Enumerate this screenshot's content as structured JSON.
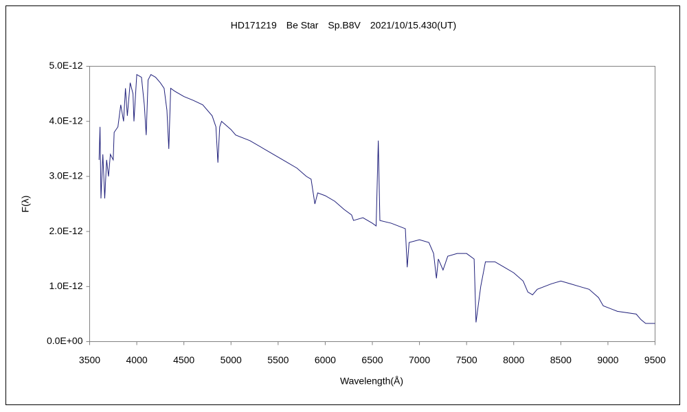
{
  "chart_data": {
    "type": "line",
    "title": "HD171219　Be Star　Sp.B8V　2021/10/15.430(UT)",
    "xlabel": "Wavelength(Å)",
    "ylabel": "F(λ)",
    "xlim": [
      3500,
      9500
    ],
    "xticks": [
      3500,
      4000,
      4500,
      5000,
      5500,
      6000,
      6500,
      7000,
      7500,
      8000,
      8500,
      9000,
      9500
    ],
    "ylim": [
      0,
      5e-12
    ],
    "yticks": [
      {
        "value": 0,
        "label": "0.0E+00"
      },
      {
        "value": 1e-12,
        "label": "1.0E-12"
      },
      {
        "value": 2e-12,
        "label": "2.0E-12"
      },
      {
        "value": 3e-12,
        "label": "3.0E-12"
      },
      {
        "value": 4e-12,
        "label": "4.0E-12"
      },
      {
        "value": 5e-12,
        "label": "5.0E-12"
      }
    ],
    "grid": false,
    "series": [
      {
        "color": "#1f1f7a",
        "x": [
          3600,
          3610,
          3620,
          3640,
          3660,
          3680,
          3700,
          3720,
          3750,
          3760,
          3800,
          3830,
          3860,
          3880,
          3900,
          3930,
          3960,
          3970,
          4000,
          4050,
          4080,
          4100,
          4120,
          4150,
          4200,
          4250,
          4290,
          4320,
          4340,
          4360,
          4400,
          4500,
          4600,
          4700,
          4800,
          4840,
          4861,
          4880,
          4900,
          5000,
          5050,
          5200,
          5400,
          5500,
          5600,
          5700,
          5800,
          5850,
          5890,
          5920,
          6000,
          6100,
          6200,
          6280,
          6300,
          6400,
          6500,
          6540,
          6563,
          6580,
          6700,
          6850,
          6870,
          6890,
          7000,
          7100,
          7150,
          7180,
          7200,
          7250,
          7300,
          7400,
          7500,
          7580,
          7600,
          7650,
          7700,
          7800,
          7900,
          8000,
          8100,
          8150,
          8200,
          8250,
          8400,
          8500,
          8600,
          8700,
          8800,
          8900,
          8950,
          9100,
          9300,
          9350,
          9400,
          9500
        ],
        "values": [
          3.3e-12,
          3.9e-12,
          2.6e-12,
          3.4e-12,
          2.6e-12,
          3.3e-12,
          3e-12,
          3.4e-12,
          3.3e-12,
          3.8e-12,
          3.9e-12,
          4.3e-12,
          4e-12,
          4.6e-12,
          4.1e-12,
          4.7e-12,
          4.5e-12,
          4e-12,
          4.85e-12,
          4.8e-12,
          4.3e-12,
          3.75e-12,
          4.75e-12,
          4.85e-12,
          4.8e-12,
          4.7e-12,
          4.6e-12,
          4.2e-12,
          3.5e-12,
          4.6e-12,
          4.55e-12,
          4.45e-12,
          4.38e-12,
          4.3e-12,
          4.1e-12,
          3.9e-12,
          3.25e-12,
          3.9e-12,
          4e-12,
          3.85e-12,
          3.75e-12,
          3.65e-12,
          3.45e-12,
          3.35e-12,
          3.25e-12,
          3.15e-12,
          3e-12,
          2.95e-12,
          2.5e-12,
          2.7e-12,
          2.65e-12,
          2.55e-12,
          2.4e-12,
          2.3e-12,
          2.2e-12,
          2.25e-12,
          2.15e-12,
          2.1e-12,
          3.65e-12,
          2.2e-12,
          2.15e-12,
          2.05e-12,
          1.35e-12,
          1.8e-12,
          1.85e-12,
          1.8e-12,
          1.6e-12,
          1.15e-12,
          1.5e-12,
          1.3e-12,
          1.55e-12,
          1.6e-12,
          1.6e-12,
          1.5e-12,
          3.5e-13,
          1e-12,
          1.45e-12,
          1.45e-12,
          1.35e-12,
          1.25e-12,
          1.1e-12,
          9e-13,
          8.5e-13,
          9.5e-13,
          1.05e-12,
          1.1e-12,
          1.05e-12,
          1e-12,
          9.5e-13,
          8e-13,
          6.5e-13,
          5.5e-13,
          5e-13,
          4e-13,
          3.3e-13,
          3.3e-13
        ]
      }
    ]
  }
}
